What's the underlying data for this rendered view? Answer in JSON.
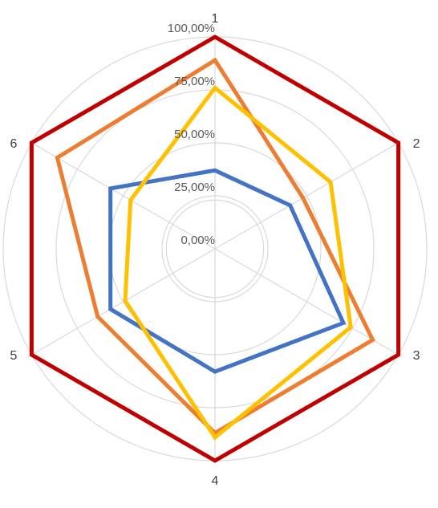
{
  "chart_data": {
    "type": "radar",
    "categories": [
      "1",
      "2",
      "3",
      "4",
      "5",
      "6"
    ],
    "rlim": [
      0,
      1
    ],
    "ticks": [
      0,
      0.25,
      0.5,
      0.75,
      1.0
    ],
    "tick_labels": [
      "0,00%",
      "25,00%",
      "50,00%",
      "75,00%",
      "100,00%"
    ],
    "grid": true,
    "legend": "none",
    "series": [
      {
        "color": "#4472c4",
        "values": [
          0.37,
          0.41,
          0.7,
          0.58,
          0.57,
          0.57
        ]
      },
      {
        "color": "#ed7d31",
        "values": [
          0.89,
          0.48,
          0.86,
          0.87,
          0.64,
          0.86
        ]
      },
      {
        "color": "#ffc000",
        "values": [
          0.76,
          0.63,
          0.74,
          0.89,
          0.49,
          0.46
        ]
      },
      {
        "color": "#c00000",
        "values": [
          1.0,
          1.0,
          1.0,
          1.0,
          1.0,
          1.0
        ]
      }
    ]
  }
}
